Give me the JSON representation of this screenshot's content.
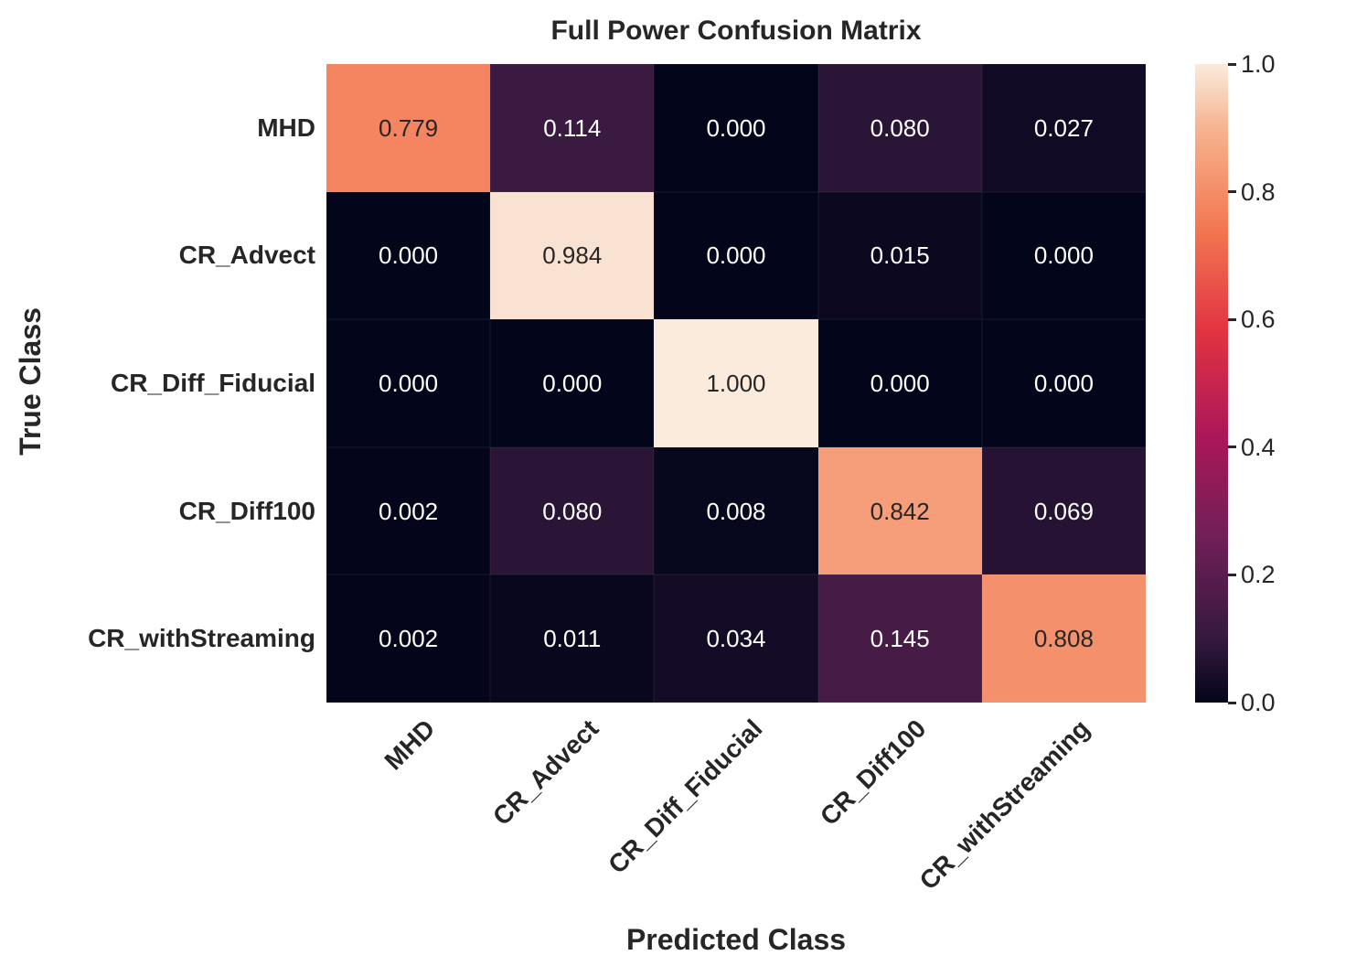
{
  "colors": {
    "background": "#FFFFFF",
    "text": "#262626",
    "annot_dark": "#262626",
    "annot_light": "#FFFFFF"
  },
  "chart_data": {
    "type": "heatmap",
    "title": "Full Power Confusion Matrix",
    "xlabel": "Predicted Class",
    "ylabel": "True Class",
    "x_categories": [
      "MHD",
      "CR_Advect",
      "CR_Diff_Fiducial",
      "CR_Diff100",
      "CR_withStreaming"
    ],
    "y_categories": [
      "MHD",
      "CR_Advect",
      "CR_Diff_Fiducial",
      "CR_Diff100",
      "CR_withStreaming"
    ],
    "values": [
      [
        0.779,
        0.114,
        0.0,
        0.08,
        0.027
      ],
      [
        0.0,
        0.984,
        0.0,
        0.015,
        0.0
      ],
      [
        0.0,
        0.0,
        1.0,
        0.0,
        0.0
      ],
      [
        0.002,
        0.08,
        0.008,
        0.842,
        0.069
      ],
      [
        0.002,
        0.011,
        0.034,
        0.145,
        0.808
      ]
    ],
    "annot_decimals": 3,
    "annot_dark_text_threshold": 0.5,
    "grid": false,
    "colorbar": {
      "min": 0.0,
      "max": 1.0,
      "tick_values": [
        0.0,
        0.2,
        0.4,
        0.6,
        0.8,
        1.0
      ],
      "tick_labels": [
        "0.0",
        "0.2",
        "0.4",
        "0.6",
        "0.8",
        "1.0"
      ],
      "position": "right",
      "colormap_name": "rocket",
      "colormap_stops": [
        {
          "pos": 0.0,
          "color": "#03051A"
        },
        {
          "pos": 0.1,
          "color": "#35193E"
        },
        {
          "pos": 0.26,
          "color": "#701F57"
        },
        {
          "pos": 0.42,
          "color": "#AD1759"
        },
        {
          "pos": 0.58,
          "color": "#E13342"
        },
        {
          "pos": 0.74,
          "color": "#F37651"
        },
        {
          "pos": 0.9,
          "color": "#F6B48F"
        },
        {
          "pos": 1.0,
          "color": "#FAEBDD"
        }
      ]
    }
  }
}
